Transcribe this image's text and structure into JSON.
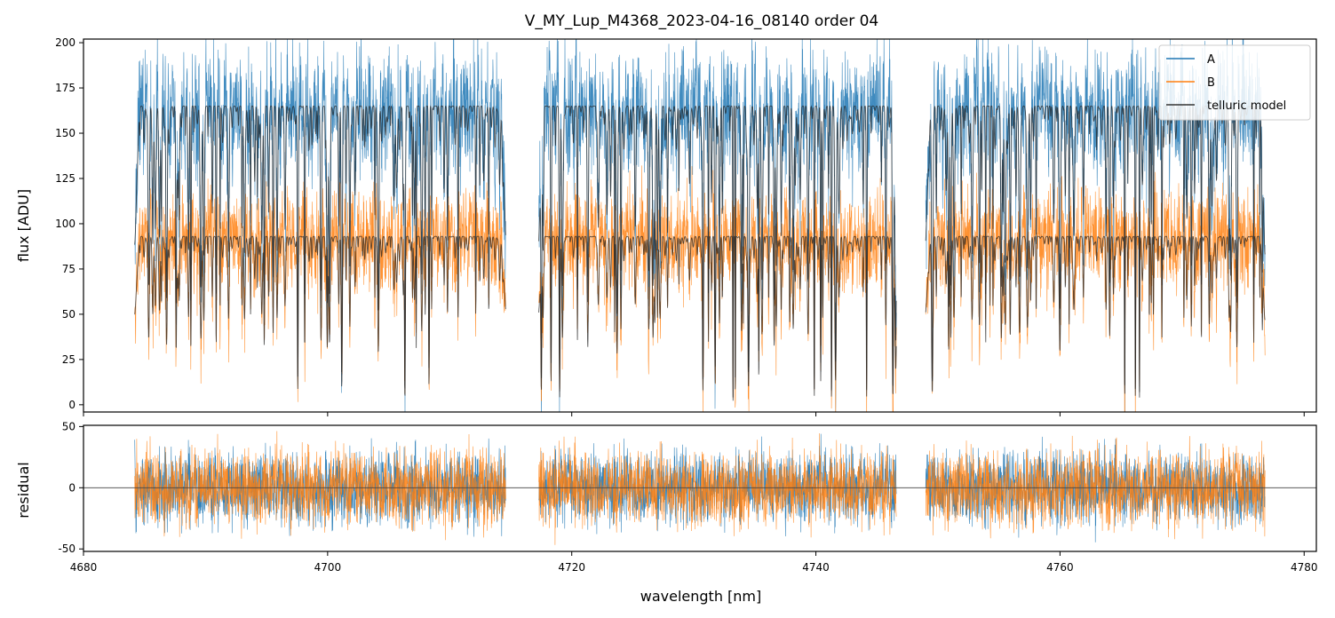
{
  "chart_data": [
    {
      "panel": "top",
      "type": "line",
      "title": "V_MY_Lup_M4368_2023-04-16_08140  order 04",
      "xlabel": "",
      "ylabel": "flux [ADU]",
      "xlim": [
        4680,
        4781
      ],
      "ylim": [
        -4,
        202
      ],
      "yticks": [
        0,
        25,
        50,
        75,
        100,
        125,
        150,
        175,
        200
      ],
      "xticks": [
        4680,
        4700,
        4720,
        4740,
        4760,
        4780
      ],
      "segments": [
        [
          4684.2,
          4714.6
        ],
        [
          4717.3,
          4746.6
        ],
        [
          4749.0,
          4776.8
        ]
      ],
      "legend": {
        "position": "top-right",
        "entries": [
          "A",
          "B",
          "telluric model"
        ]
      },
      "series": [
        {
          "name": "A",
          "color": "#1f77b4",
          "continuum": 160,
          "model_level": 165,
          "noise": 28
        },
        {
          "name": "B",
          "color": "#ff7f0e",
          "continuum": 85,
          "model_level": 93,
          "noise": 22
        },
        {
          "name": "telluric model",
          "color": "#333333"
        }
      ]
    },
    {
      "panel": "bottom",
      "type": "line",
      "xlabel": "wavelength [nm]",
      "ylabel": "residual",
      "xlim": [
        4680,
        4781
      ],
      "ylim": [
        -52,
        51
      ],
      "yticks": [
        -50,
        0,
        50
      ],
      "xticks": [
        4680,
        4700,
        4720,
        4740,
        4760,
        4780
      ],
      "zero_line": 0,
      "series": [
        {
          "name": "A",
          "color": "#1f77b4",
          "noise": 20
        },
        {
          "name": "B",
          "color": "#ff7f0e",
          "noise": 21
        }
      ]
    }
  ]
}
